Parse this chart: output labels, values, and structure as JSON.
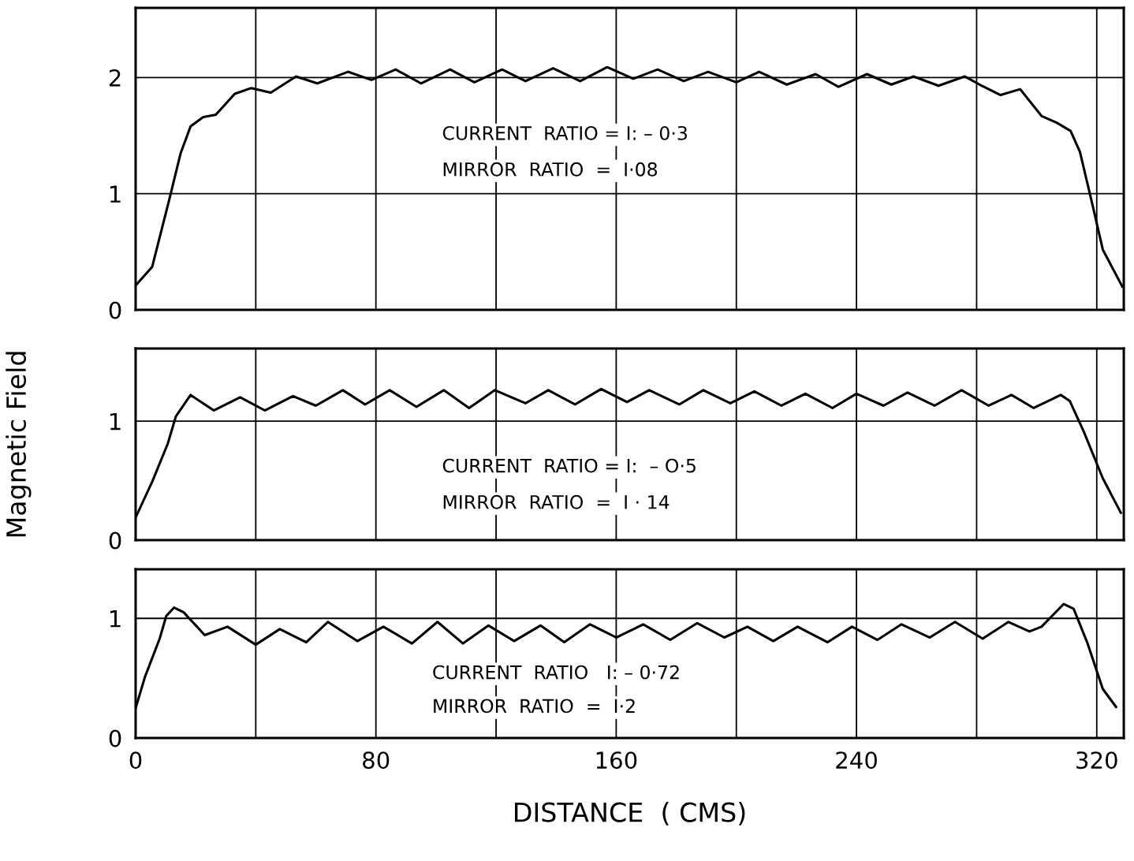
{
  "chart_data": [
    {
      "type": "line",
      "x": [
        0,
        5.5,
        11.3,
        15,
        18.3,
        22.5,
        26.7,
        33,
        38.5,
        45,
        53.4,
        60.5,
        70.7,
        78.5,
        86.6,
        95,
        104.7,
        112.8,
        122,
        129.8,
        139,
        148,
        157,
        165.7,
        173.8,
        182.5,
        190.6,
        200,
        207.6,
        216.8,
        226.4,
        234,
        243.5,
        251.6,
        259,
        267.3,
        276,
        281,
        288,
        294.5,
        301.6,
        306.8,
        311.3,
        314.4,
        318.8,
        322,
        328.5
      ],
      "series": [
        {
          "color": "#000000",
          "values": [
            0.21,
            0.37,
            0.96,
            1.35,
            1.58,
            1.66,
            1.68,
            1.86,
            1.91,
            1.87,
            2.01,
            1.95,
            2.05,
            1.98,
            2.07,
            1.95,
            2.07,
            1.96,
            2.07,
            1.97,
            2.08,
            1.97,
            2.09,
            1.99,
            2.07,
            1.97,
            2.05,
            1.96,
            2.05,
            1.94,
            2.03,
            1.92,
            2.03,
            1.94,
            2.01,
            1.93,
            2.01,
            1.94,
            1.85,
            1.9,
            1.67,
            1.61,
            1.54,
            1.36,
            0.88,
            0.52,
            0.2
          ]
        }
      ],
      "xlim": [
        0,
        329
      ],
      "ylim": [
        0,
        2.6
      ],
      "yticks": [
        0,
        1,
        2
      ],
      "xticks": [
        0,
        {
          "value": 40,
          "label": null
        },
        80,
        {
          "value": 120,
          "label": null
        },
        160,
        {
          "value": 200,
          "label": null
        },
        240,
        {
          "value": 280,
          "label": null
        },
        320
      ],
      "tick_labels": "y",
      "grid": true,
      "annotations": [
        "CURRENT  RATIO = I: – 0·3",
        "MIRROR  RATIO  =  I·08"
      ]
    },
    {
      "type": "line",
      "x": [
        0,
        5.5,
        10.7,
        13.4,
        18.3,
        26,
        34.8,
        43,
        52.4,
        60,
        69,
        76.4,
        84.6,
        93.5,
        102.6,
        111,
        119.6,
        129.8,
        137.4,
        146.3,
        155,
        163.6,
        171,
        181,
        189,
        198,
        206,
        215,
        223,
        232,
        240,
        249,
        257,
        266,
        275,
        284,
        291.6,
        299,
        308,
        311,
        315.7,
        322,
        328
      ],
      "series": [
        {
          "color": "#000000",
          "values": [
            0.19,
            0.49,
            0.81,
            1.04,
            1.22,
            1.09,
            1.2,
            1.09,
            1.21,
            1.13,
            1.26,
            1.14,
            1.26,
            1.12,
            1.26,
            1.11,
            1.26,
            1.15,
            1.26,
            1.14,
            1.27,
            1.16,
            1.26,
            1.14,
            1.26,
            1.15,
            1.25,
            1.13,
            1.23,
            1.11,
            1.23,
            1.13,
            1.24,
            1.13,
            1.26,
            1.13,
            1.22,
            1.11,
            1.22,
            1.17,
            0.91,
            0.52,
            0.23
          ]
        }
      ],
      "xlim": [
        0,
        329
      ],
      "ylim": [
        0,
        1.61
      ],
      "yticks": [
        0,
        1
      ],
      "xticks": [
        0,
        {
          "value": 40,
          "label": null
        },
        80,
        {
          "value": 120,
          "label": null
        },
        160,
        {
          "value": 200,
          "label": null
        },
        240,
        {
          "value": 280,
          "label": null
        },
        320
      ],
      "tick_labels": "y",
      "grid": true,
      "ylabel": "Magnetic Field",
      "annotations": [
        "CURRENT  RATIO = I:  – O·5",
        "MIRROR  RATIO  =  I · 14"
      ]
    },
    {
      "type": "line",
      "x": [
        0,
        3.1,
        8,
        10.2,
        12.8,
        16,
        23,
        30.6,
        40,
        48,
        56.8,
        64,
        73.8,
        82.5,
        92,
        100.5,
        109,
        117.5,
        126,
        134.8,
        142.7,
        151.3,
        160,
        169,
        178,
        187,
        196,
        203.7,
        212.3,
        220.4,
        230.4,
        238.5,
        247,
        255,
        264.4,
        272.8,
        282,
        290.6,
        297.6,
        301.6,
        309,
        312.3,
        316.8,
        322,
        326.4
      ],
      "series": [
        {
          "color": "#000000",
          "values": [
            0.25,
            0.51,
            0.83,
            1.02,
            1.09,
            1.05,
            0.86,
            0.93,
            0.78,
            0.91,
            0.8,
            0.97,
            0.81,
            0.93,
            0.79,
            0.97,
            0.79,
            0.94,
            0.81,
            0.94,
            0.8,
            0.95,
            0.84,
            0.95,
            0.82,
            0.96,
            0.84,
            0.93,
            0.81,
            0.93,
            0.8,
            0.93,
            0.82,
            0.95,
            0.84,
            0.97,
            0.83,
            0.97,
            0.89,
            0.93,
            1.12,
            1.08,
            0.8,
            0.41,
            0.26
          ]
        }
      ],
      "xlim": [
        0,
        329
      ],
      "ylim": [
        0,
        1.41
      ],
      "yticks": [
        0,
        1
      ],
      "xticks": [
        0,
        {
          "value": 40,
          "label": null
        },
        80,
        {
          "value": 120,
          "label": null
        },
        160,
        {
          "value": 200,
          "label": null
        },
        240,
        {
          "value": 280,
          "label": null
        },
        320
      ],
      "grid": true,
      "xlabel": "DISTANCE  ( CMS)",
      "annotations": [
        "CURRENT  RATIO   I: – 0·72",
        "MIRROR  RATIO  =  I·2"
      ]
    }
  ]
}
